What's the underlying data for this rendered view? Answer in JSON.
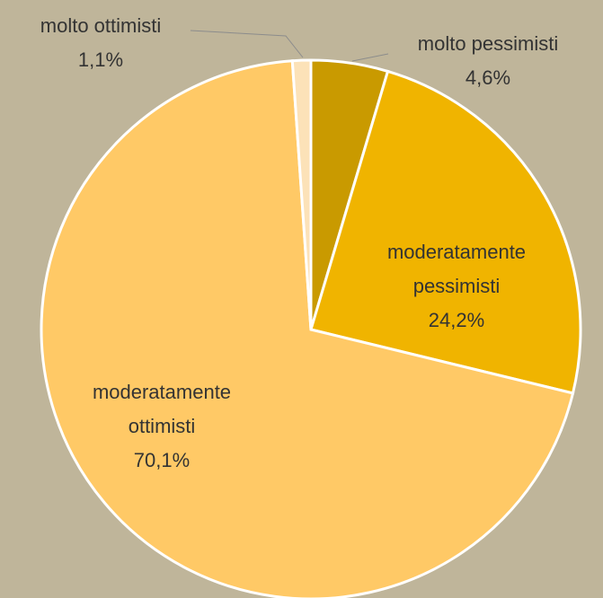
{
  "chart_data": {
    "type": "pie",
    "categories": [
      "molto pessimisti",
      "moderatamente pessimisti",
      "moderatamente ottimisti",
      "molto ottimisti"
    ],
    "values": [
      4.6,
      24.2,
      70.1,
      1.1
    ],
    "value_labels": [
      "4,6%",
      "24,2%",
      "70,1%",
      "1,1%"
    ],
    "colors": [
      "#c99a00",
      "#f0b400",
      "#ffc966",
      "#fce2b8"
    ]
  }
}
